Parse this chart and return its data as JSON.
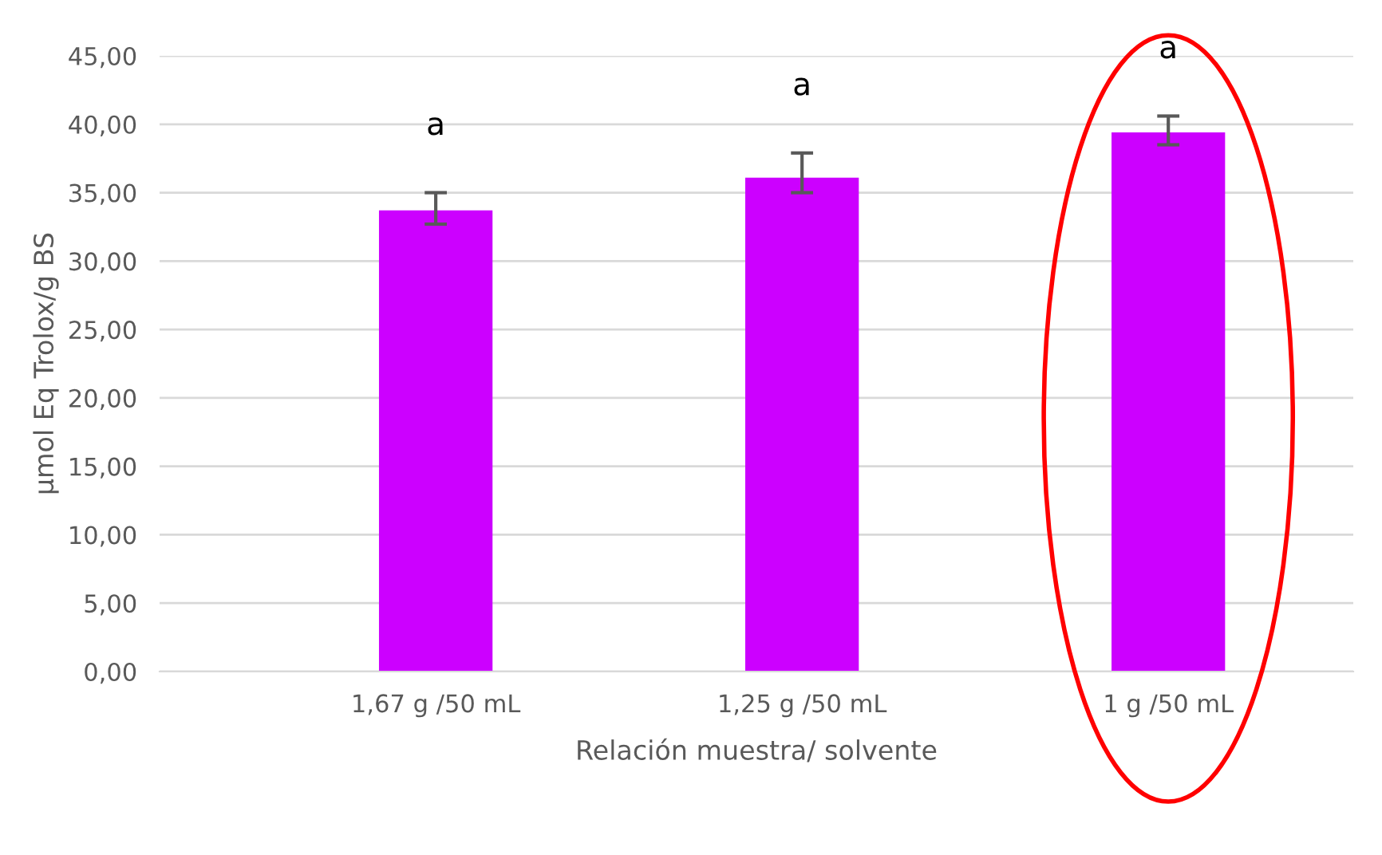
{
  "chart_data": {
    "type": "bar",
    "ylabel": "µmol Eq Trolox/g BS",
    "xlabel": "Relación muestra/ solvente",
    "categories": [
      "1,67 g /50 mL",
      "1,25 g /50 mL",
      "1 g /50 mL"
    ],
    "values": [
      33.7,
      36.1,
      39.4
    ],
    "errors": [
      [
        32.7,
        35.0
      ],
      [
        35.0,
        37.9
      ],
      [
        38.5,
        40.6
      ]
    ],
    "color": "#cc00ff",
    "ylim": [
      0,
      45
    ],
    "yticks": [
      {
        "value": 0,
        "label": "0,00"
      },
      {
        "value": 5,
        "label": "5,00"
      },
      {
        "value": 10,
        "label": "10,00"
      },
      {
        "value": 15,
        "label": "15,00"
      },
      {
        "value": 20,
        "label": "20,00"
      },
      {
        "value": 25,
        "label": "25,00"
      },
      {
        "value": 30,
        "label": "30,00"
      },
      {
        "value": 35,
        "label": "35,00"
      },
      {
        "value": 40,
        "label": "40,00"
      },
      {
        "value": 45,
        "label": "45,00"
      }
    ],
    "grid": "y",
    "annotations": [
      "a",
      "a",
      "a"
    ]
  }
}
